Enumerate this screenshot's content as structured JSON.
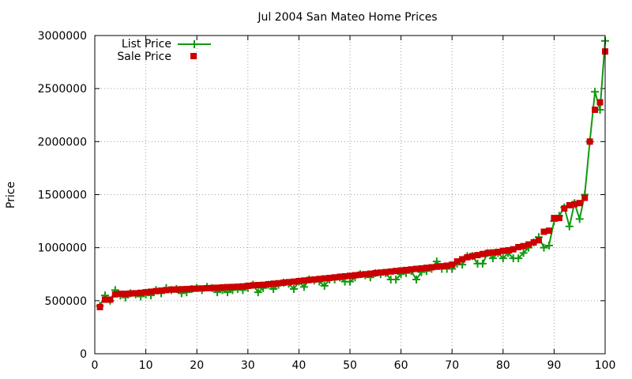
{
  "chart_data": {
    "type": "line",
    "title": "Jul 2004 San Mateo Home Prices",
    "xlabel": "",
    "ylabel": "Price",
    "xlim": [
      0,
      100
    ],
    "ylim": [
      0,
      3000000
    ],
    "xticks": [
      0,
      10,
      20,
      30,
      40,
      50,
      60,
      70,
      80,
      90,
      100
    ],
    "yticks": [
      0,
      500000,
      1000000,
      1500000,
      2000000,
      2500000,
      3000000
    ],
    "grid": true,
    "legend_position": "top-left",
    "series": [
      {
        "name": "List Price",
        "style": "line-and-plus",
        "color": "#109910",
        "x": [
          1,
          2,
          3,
          4,
          5,
          6,
          7,
          8,
          9,
          10,
          11,
          12,
          13,
          14,
          15,
          16,
          17,
          18,
          19,
          20,
          21,
          22,
          23,
          24,
          25,
          26,
          27,
          28,
          29,
          30,
          31,
          32,
          33,
          34,
          35,
          36,
          37,
          38,
          39,
          40,
          41,
          42,
          43,
          44,
          45,
          46,
          47,
          48,
          49,
          50,
          51,
          52,
          53,
          54,
          55,
          56,
          57,
          58,
          59,
          60,
          61,
          62,
          63,
          64,
          65,
          66,
          67,
          68,
          69,
          70,
          71,
          72,
          73,
          74,
          75,
          76,
          77,
          78,
          79,
          80,
          81,
          82,
          83,
          84,
          85,
          86,
          87,
          88,
          89,
          90,
          91,
          92,
          93,
          94,
          95,
          96,
          97,
          98,
          99,
          100
        ],
        "y": [
          450000,
          550000,
          500000,
          600000,
          550000,
          530000,
          570000,
          560000,
          540000,
          560000,
          550000,
          600000,
          570000,
          620000,
          600000,
          610000,
          570000,
          580000,
          610000,
          620000,
          600000,
          630000,
          620000,
          580000,
          600000,
          580000,
          600000,
          610000,
          600000,
          620000,
          650000,
          580000,
          620000,
          650000,
          610000,
          650000,
          670000,
          660000,
          610000,
          680000,
          630000,
          700000,
          690000,
          680000,
          640000,
          700000,
          700000,
          720000,
          680000,
          680000,
          720000,
          750000,
          740000,
          720000,
          760000,
          750000,
          760000,
          700000,
          700000,
          750000,
          760000,
          780000,
          700000,
          770000,
          780000,
          800000,
          870000,
          800000,
          800000,
          800000,
          850000,
          840000,
          920000,
          920000,
          850000,
          850000,
          950000,
          900000,
          950000,
          900000,
          950000,
          900000,
          900000,
          950000,
          1000000,
          1050000,
          1100000,
          1000000,
          1020000,
          1250000,
          1300000,
          1380000,
          1200000,
          1420000,
          1270000,
          1500000,
          2000000,
          2470000,
          2300000,
          2950000
        ]
      },
      {
        "name": "Sale Price",
        "style": "square-points",
        "color": "#cc0000",
        "x": [
          1,
          2,
          3,
          4,
          5,
          6,
          7,
          8,
          9,
          10,
          11,
          12,
          13,
          14,
          15,
          16,
          17,
          18,
          19,
          20,
          21,
          22,
          23,
          24,
          25,
          26,
          27,
          28,
          29,
          30,
          31,
          32,
          33,
          34,
          35,
          36,
          37,
          38,
          39,
          40,
          41,
          42,
          43,
          44,
          45,
          46,
          47,
          48,
          49,
          50,
          51,
          52,
          53,
          54,
          55,
          56,
          57,
          58,
          59,
          60,
          61,
          62,
          63,
          64,
          65,
          66,
          67,
          68,
          69,
          70,
          71,
          72,
          73,
          74,
          75,
          76,
          77,
          78,
          79,
          80,
          81,
          82,
          83,
          84,
          85,
          86,
          87,
          88,
          89,
          90,
          91,
          92,
          93,
          94,
          95,
          96,
          97,
          98,
          99,
          100
        ],
        "y": [
          440000,
          510000,
          510000,
          560000,
          565000,
          565000,
          568000,
          570000,
          575000,
          580000,
          585000,
          590000,
          595000,
          600000,
          605000,
          605000,
          608000,
          610000,
          612000,
          614000,
          616000,
          618000,
          620000,
          622000,
          625000,
          628000,
          630000,
          632000,
          635000,
          640000,
          645000,
          648000,
          650000,
          655000,
          660000,
          665000,
          670000,
          675000,
          680000,
          685000,
          690000,
          695000,
          700000,
          705000,
          710000,
          715000,
          720000,
          725000,
          730000,
          735000,
          740000,
          745000,
          750000,
          755000,
          760000,
          765000,
          770000,
          775000,
          780000,
          785000,
          790000,
          795000,
          800000,
          805000,
          810000,
          815000,
          820000,
          825000,
          830000,
          840000,
          870000,
          890000,
          910000,
          920000,
          930000,
          940000,
          950000,
          955000,
          960000,
          970000,
          975000,
          985000,
          1005000,
          1015000,
          1030000,
          1050000,
          1070000,
          1150000,
          1160000,
          1280000,
          1280000,
          1370000,
          1400000,
          1410000,
          1420000,
          1470000,
          2000000,
          2300000,
          2370000,
          2850000
        ]
      }
    ]
  }
}
